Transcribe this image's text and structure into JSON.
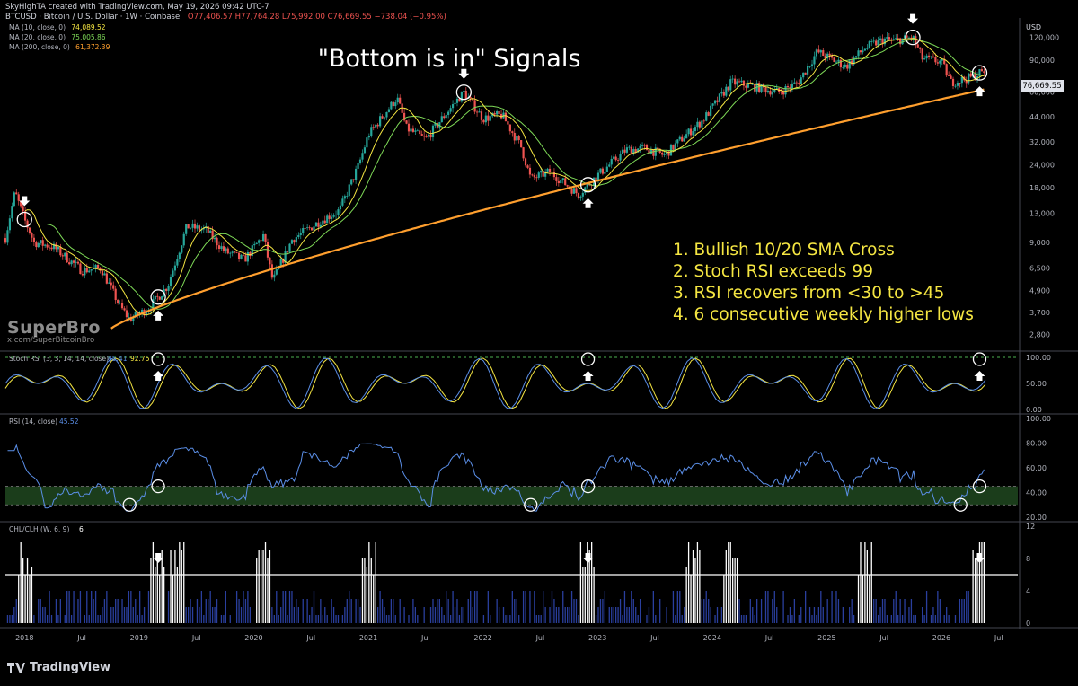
{
  "header": {
    "attribution": "SkyHighTA created with TradingView.com, May 19, 2026 09:42 UTC-7",
    "symbol_line": "BTCUSD · Bitcoin / U.S. Dollar · 1W · Coinbase",
    "ohlc": "O77,406.57  H77,764.28  L75,992.00  C76,669.55  −738.04 (−0.95%)"
  },
  "legend": [
    {
      "label": "MA (10, close, 0)",
      "value": "74,089.52",
      "color": "#f5e642"
    },
    {
      "label": "MA (20, close, 0)",
      "value": "75,005.86",
      "color": "#7ed957"
    },
    {
      "label": "MA (200, close, 0)",
      "value": "61,372.39",
      "color": "#ff9f2e"
    }
  ],
  "title": "\"Bottom is in\" Signals",
  "criteria": [
    "1. Bullish 10/20 SMA Cross",
    "2. Stoch RSI exceeds 99",
    "3. RSI recovers from <30 to >45",
    "4. 6 consecutive weekly higher lows"
  ],
  "brand": {
    "name": "SuperBro",
    "handle": "x.com/SuperBitcoinBro"
  },
  "footer_logo": "TradingView",
  "currency": "USD",
  "price_tag": "76,669.55",
  "colors": {
    "up": "#26a69a",
    "down": "#ef5350",
    "ma10": "#f5e642",
    "ma20": "#7ed957",
    "ma200": "#ff9f2e",
    "rsi": "#5b8fe8",
    "stoch_k": "#5b8fe8",
    "stoch_d": "#f5e642",
    "rsi_band": "#1b3d1b",
    "chl_blue": "#2a3f9e",
    "chl_white": "#ffffff"
  },
  "chart_data": [
    {
      "type": "candlestick",
      "name": "BTCUSD 1W",
      "y_scale": "log",
      "ylim": [
        2300,
        150000
      ],
      "y_ticks": [
        "120,000",
        "90,000",
        "60,000",
        "44,000",
        "32,000",
        "24,000",
        "18,000",
        "13,000",
        "9,000",
        "6,500",
        "4,900",
        "3,700",
        "2,800"
      ],
      "y_tick_values": [
        120000,
        90000,
        60000,
        44000,
        32000,
        24000,
        18000,
        13000,
        9000,
        6500,
        4900,
        3700,
        2800
      ],
      "x_ticks": [
        "2018",
        "Jul",
        "2019",
        "Jul",
        "2020",
        "Jul",
        "2021",
        "Jul",
        "2022",
        "Jul",
        "2023",
        "Jul",
        "2024",
        "Jul",
        "2025",
        "Jul",
        "2026",
        "Jul"
      ],
      "x_tick_dates": [
        "2018-01",
        "2018-07",
        "2019-01",
        "2019-07",
        "2020-01",
        "2020-07",
        "2021-01",
        "2021-07",
        "2022-01",
        "2022-07",
        "2023-01",
        "2023-07",
        "2024-01",
        "2024-07",
        "2025-01",
        "2025-07",
        "2026-01",
        "2026-07"
      ],
      "x_range": [
        "2017-11",
        "2026-09"
      ],
      "close_anchors": {
        "dates": [
          "2017-11",
          "2017-12",
          "2018-01",
          "2018-02",
          "2018-04",
          "2018-07",
          "2018-09",
          "2018-11",
          "2018-12",
          "2019-02",
          "2019-04",
          "2019-06",
          "2019-08",
          "2019-10",
          "2019-12",
          "2020-02",
          "2020-03",
          "2020-05",
          "2020-08",
          "2020-10",
          "2020-12",
          "2021-01",
          "2021-04",
          "2021-05",
          "2021-07",
          "2021-09",
          "2021-11",
          "2022-01",
          "2022-03",
          "2022-05",
          "2022-06",
          "2022-08",
          "2022-11",
          "2023-01",
          "2023-04",
          "2023-06",
          "2023-08",
          "2023-10",
          "2023-12",
          "2024-03",
          "2024-05",
          "2024-08",
          "2024-10",
          "2024-12",
          "2025-03",
          "2025-05",
          "2025-07",
          "2025-08",
          "2025-10",
          "2025-11",
          "2026-01",
          "2026-02",
          "2026-04",
          "2026-05"
        ],
        "values": [
          9500,
          17000,
          12000,
          9000,
          8500,
          6300,
          6500,
          4000,
          3400,
          3900,
          5200,
          11000,
          10500,
          8000,
          7200,
          9800,
          5500,
          9300,
          11800,
          13500,
          24000,
          35000,
          56000,
          38000,
          33000,
          45000,
          60000,
          43000,
          45000,
          30000,
          20000,
          22000,
          16500,
          21000,
          29000,
          29500,
          27000,
          34000,
          42000,
          68000,
          65000,
          60000,
          68000,
          100000,
          83000,
          105000,
          117000,
          115000,
          120000,
          92000,
          88000,
          68000,
          72000,
          76669
        ]
      },
      "ma_labels": [
        "MA (10, close, 0)",
        "MA (20, close, 0)",
        "MA (200, close, 0)"
      ],
      "signal_markers": [
        "2018-01",
        "2019-03",
        "2021-11",
        "2022-12",
        "2025-10",
        "2026-05"
      ],
      "last": 76669.55
    },
    {
      "type": "line",
      "name": "Stoch RSI (3, 3, 14, 14, close)",
      "values_shown": [
        "85.41",
        "92.75"
      ],
      "ylim": [
        0,
        100
      ],
      "y_ticks": [
        "100.00",
        "50.00",
        "0.00"
      ],
      "series": [
        {
          "name": "K"
        },
        {
          "name": "D"
        }
      ]
    },
    {
      "type": "line",
      "name": "RSI (14, close)",
      "value_shown": "45.52",
      "ylim": [
        20,
        100
      ],
      "y_ticks": [
        "100.00",
        "80.00",
        "60.00",
        "40.00",
        "20.00"
      ],
      "band": [
        30,
        45
      ],
      "signal_markers": [
        "2018-12",
        "2019-03",
        "2022-06",
        "2022-12",
        "2026-03",
        "2026-05"
      ]
    },
    {
      "type": "bar",
      "name": "CHL/CLH (W, 6, 9)",
      "value_shown": "6",
      "ylim": [
        0,
        12
      ],
      "y_ticks": [
        "12",
        "8",
        "4",
        "0"
      ],
      "threshold": 6,
      "signal_markers": [
        "2019-03",
        "2022-12",
        "2026-05"
      ]
    }
  ]
}
